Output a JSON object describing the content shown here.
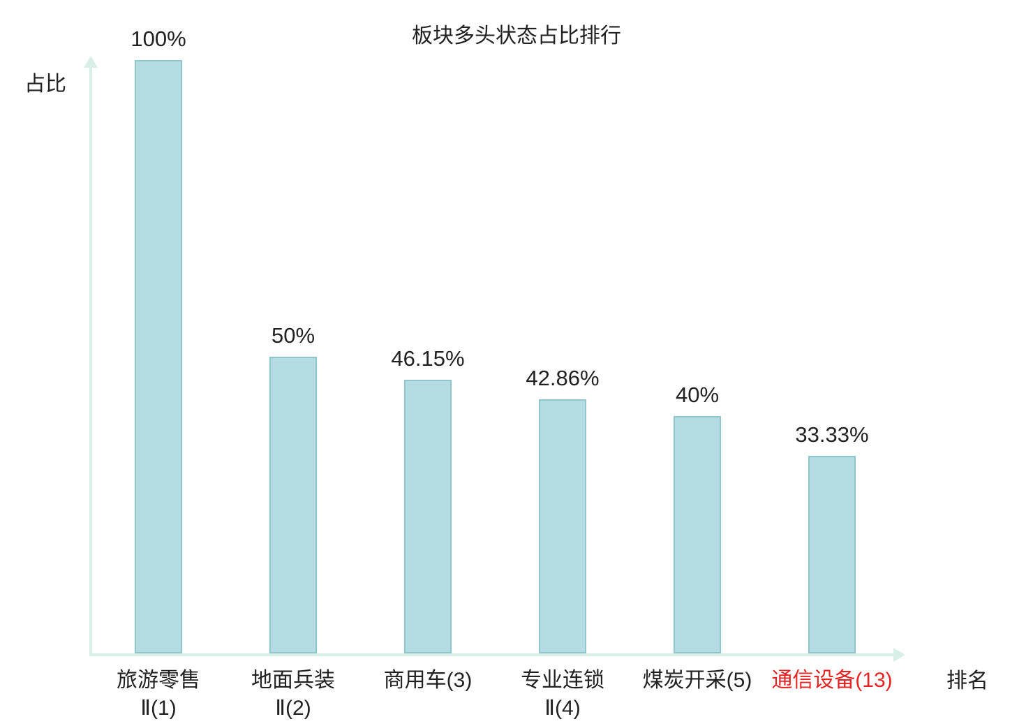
{
  "chart_data": {
    "type": "bar",
    "title": "板块多头状态占比排行",
    "ylabel": "占比",
    "xlabel": "排名",
    "ylim": [
      0,
      100
    ],
    "grid": false,
    "legend": "none",
    "categories": [
      "旅游零售Ⅱ(1)",
      "地面兵装Ⅱ(2)",
      "商用车(3)",
      "专业连锁Ⅱ(4)",
      "煤炭开采(5)",
      "通信设备(13)"
    ],
    "values": [
      100,
      50,
      46.15,
      42.86,
      40,
      33.33
    ],
    "bars": [
      {
        "label_lines": [
          "旅游零售",
          "Ⅱ(1)"
        ],
        "value": 100,
        "value_label": "100%",
        "highlight": false
      },
      {
        "label_lines": [
          "地面兵装",
          "Ⅱ(2)"
        ],
        "value": 50,
        "value_label": "50%",
        "highlight": false
      },
      {
        "label_lines": [
          "商用车(3)"
        ],
        "value": 46.15,
        "value_label": "46.15%",
        "highlight": false
      },
      {
        "label_lines": [
          "专业连锁",
          "Ⅱ(4)"
        ],
        "value": 42.86,
        "value_label": "42.86%",
        "highlight": false
      },
      {
        "label_lines": [
          "煤炭开采(5)"
        ],
        "value": 40,
        "value_label": "40%",
        "highlight": false
      },
      {
        "label_lines": [
          "通信设备(13)"
        ],
        "value": 33.33,
        "value_label": "33.33%",
        "highlight": true
      }
    ]
  },
  "colors": {
    "bar_fill": "#b5dce2",
    "bar_border": "#8fc6cc",
    "axis": "#d8efe8",
    "text": "#212121",
    "highlight": "#e62222"
  }
}
